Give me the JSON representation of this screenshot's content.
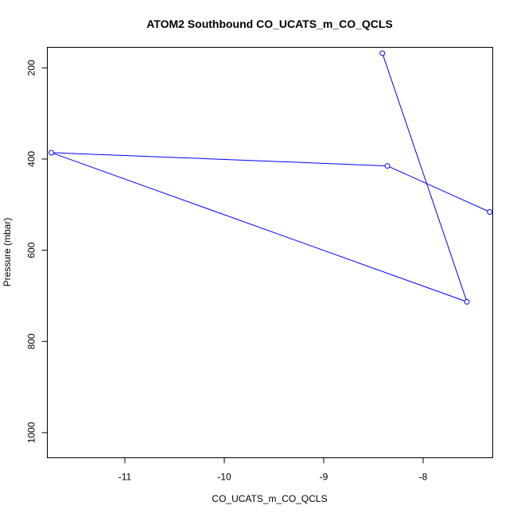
{
  "chart_data": {
    "type": "line",
    "title": "ATOM2 Southbound CO_UCATS_m_CO_QCLS",
    "xlabel": "CO_UCATS_m_CO_QCLS",
    "ylabel": "Pressure (mbar)",
    "xlim": [
      -11.78,
      -7.3
    ],
    "ylim": [
      1055,
      155
    ],
    "y_reversed": true,
    "x_ticks": [
      -11,
      -10,
      -9,
      -8
    ],
    "y_ticks": [
      200,
      400,
      600,
      800,
      1000
    ],
    "grid": false,
    "series": [
      {
        "color": "#0000ff",
        "marker": "open-circle",
        "x": [
          -8.41,
          -7.56,
          -11.74,
          -8.36,
          -7.33
        ],
        "y": [
          168,
          713,
          386,
          415,
          516
        ]
      }
    ]
  }
}
